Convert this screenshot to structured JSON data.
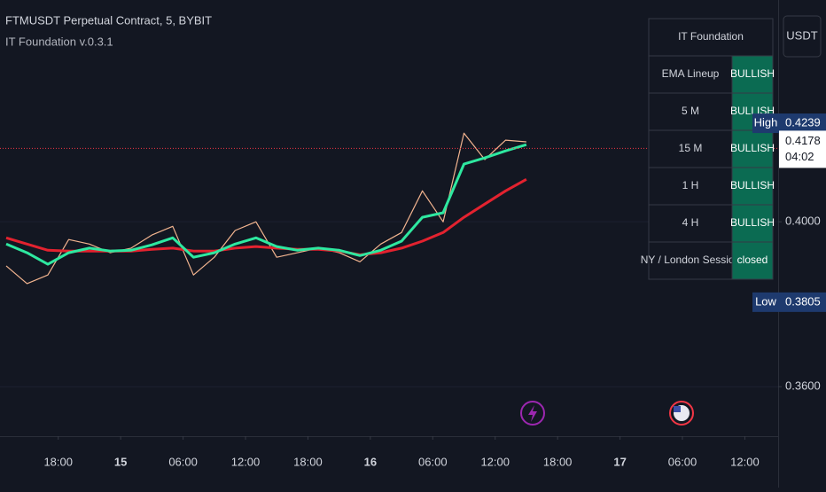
{
  "chart_data": {
    "type": "line",
    "title": "FTMUSDT Perpetual Contract, 5, BYBIT",
    "subtitle": "IT Foundation v.0.3.1",
    "currency": "USDT",
    "x": [
      -11,
      -9,
      -7,
      -5,
      -3,
      -1,
      1,
      3,
      5,
      7,
      9,
      11,
      13,
      15,
      17,
      19,
      21,
      23,
      25,
      27,
      29,
      31,
      33,
      35,
      37,
      39
    ],
    "series": [
      {
        "color": "#f2b48f",
        "values": [
          0.3893,
          0.385,
          0.3871,
          0.3957,
          0.3946,
          0.3925,
          0.3936,
          0.3968,
          0.3989,
          0.3871,
          0.3914,
          0.3979,
          0.4,
          0.3914,
          0.3925,
          0.3936,
          0.3925,
          0.3903,
          0.3946,
          0.3974,
          0.4075,
          0.4,
          0.4215,
          0.4151,
          0.4198,
          0.4194
        ]
      },
      {
        "color": "#e3222f",
        "values": [
          0.3961,
          0.3946,
          0.3931,
          0.3929,
          0.3929,
          0.3929,
          0.3929,
          0.3933,
          0.3936,
          0.3929,
          0.3929,
          0.3936,
          0.394,
          0.3936,
          0.3933,
          0.3933,
          0.3929,
          0.392,
          0.3925,
          0.3936,
          0.3953,
          0.3974,
          0.4011,
          0.4043,
          0.4075,
          0.4103
        ]
      },
      {
        "color": "#2ee8a0",
        "values": [
          0.3946,
          0.3925,
          0.3897,
          0.3925,
          0.3936,
          0.3929,
          0.3931,
          0.3944,
          0.3961,
          0.3914,
          0.3925,
          0.3946,
          0.3961,
          0.394,
          0.3931,
          0.3936,
          0.3931,
          0.3918,
          0.3931,
          0.3953,
          0.4011,
          0.4022,
          0.414,
          0.4155,
          0.4172,
          0.4187
        ]
      }
    ],
    "xlim": [
      -11.6,
      63.2
    ],
    "xticks": [
      {
        "value": -6,
        "label": "18:00"
      },
      {
        "value": 0,
        "label": "15"
      },
      {
        "value": 6,
        "label": "06:00"
      },
      {
        "value": 12,
        "label": "12:00"
      },
      {
        "value": 18,
        "label": "18:00"
      },
      {
        "value": 24,
        "label": "16"
      },
      {
        "value": 30,
        "label": "06:00"
      },
      {
        "value": 36,
        "label": "12:00"
      },
      {
        "value": 42,
        "label": "18:00"
      },
      {
        "value": 48,
        "label": "17"
      },
      {
        "value": 54,
        "label": "06:00"
      },
      {
        "value": 60,
        "label": "12:00"
      }
    ],
    "ylim": [
      0.348,
      0.4538
    ],
    "yticks": [
      {
        "value": 0.36,
        "label": "0.3600"
      },
      {
        "value": 0.4,
        "label": "0.4000"
      }
    ],
    "price_labels": [
      {
        "name": "High",
        "value": 0.4239
      },
      {
        "value": 0.4178,
        "countdown": "04:02"
      },
      {
        "name": "Low",
        "value": 0.3805
      }
    ]
  },
  "indicator_table": {
    "title": "IT Foundation",
    "rows": [
      [
        "EMA Lineup",
        "BULLISH"
      ],
      [
        "5 M",
        "BULLISH"
      ],
      [
        "15 M",
        "BULLISH"
      ],
      [
        "1 H",
        "BULLISH"
      ],
      [
        "4 H",
        "BULLISH"
      ],
      [
        "NY / London Session",
        "closed"
      ]
    ]
  }
}
